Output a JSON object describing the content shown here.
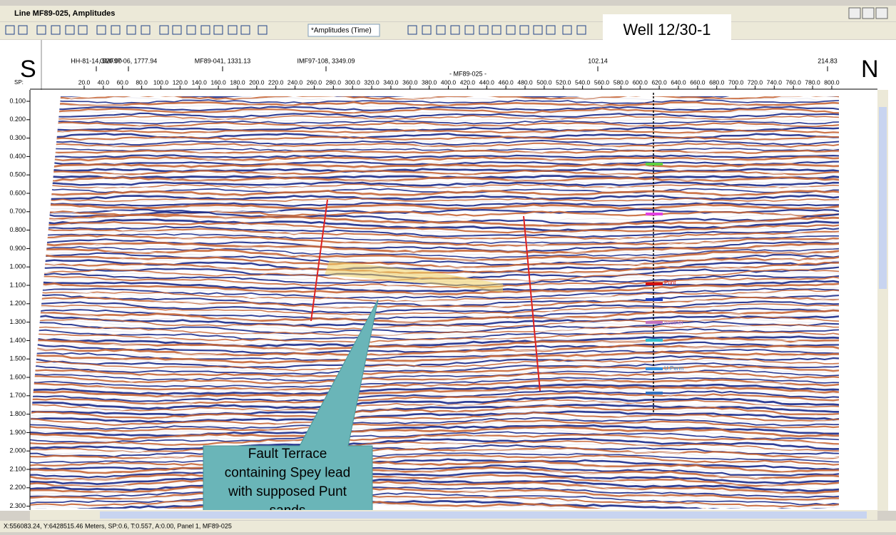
{
  "window": {
    "title": "Line MF89-025, Amplitudes"
  },
  "toolbar": {
    "dropdown": "*Amplitudes (Time)"
  },
  "header": {
    "left": "S",
    "right": "N",
    "sp_label": "SP:",
    "well": "Well 12/30-1",
    "crossing_lines": [
      "HH-81-14, 520.00",
      "GMF97-06, 1777.94",
      "MF89-041, 1331.13",
      "IMF97-108, 3349.09",
      "102.14",
      "214.83"
    ],
    "section_name": "- MF89-025 -",
    "sp_ticks": [
      "20.0",
      "40.0",
      "60.0",
      "80.0",
      "100.0",
      "120.0",
      "140.0",
      "160.0",
      "180.0",
      "200.0",
      "220.0",
      "240.0",
      "260.0",
      "280.0",
      "300.0",
      "320.0",
      "340.0",
      "360.0",
      "380.0",
      "400.0",
      "420.0",
      "440.0",
      "460.0",
      "480.0",
      "500.0",
      "520.0",
      "540.0",
      "560.0",
      "580.0",
      "600.0",
      "620.0",
      "640.0",
      "660.0",
      "680.0",
      "700.0",
      "720.0",
      "740.0",
      "760.0",
      "780.0",
      "800.0"
    ]
  },
  "time_axis": {
    "ticks": [
      "0.100",
      "0.200",
      "0.300",
      "0.400",
      "0.500",
      "0.600",
      "0.700",
      "0.800",
      "0.900",
      "1.000",
      "1.100",
      "1.200",
      "1.300",
      "1.400",
      "1.500",
      "1.600",
      "1.700",
      "1.800",
      "1.900",
      "2.000",
      "2.100",
      "2.200",
      "2.300"
    ]
  },
  "well_markers": [
    "Punt",
    "heather",
    "U.Perm"
  ],
  "annotation": [
    "Fault Terrace",
    "containing Spey lead",
    "with supposed Punt",
    "sands"
  ],
  "status_bar": "X:556083.24, Y:6428515.46 Meters, SP:0.6, T:0.557, A:0.00, Panel 1, MF89-025"
}
